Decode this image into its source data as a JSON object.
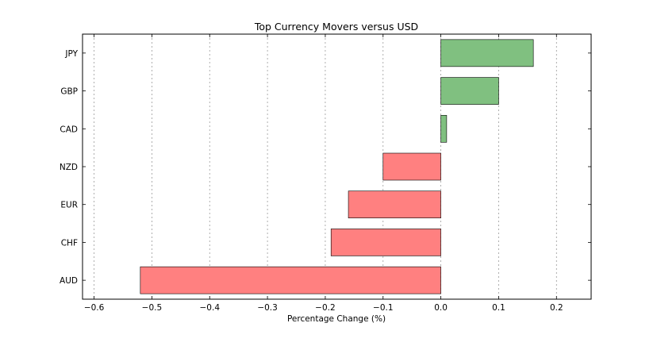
{
  "chart_data": {
    "type": "bar",
    "orientation": "horizontal",
    "title": "Top Currency Movers versus USD",
    "xlabel": "Percentage Change (%)",
    "ylabel": "",
    "xlim": [
      -0.62,
      0.26
    ],
    "xticks": [
      -0.6,
      -0.5,
      -0.4,
      -0.3,
      -0.2,
      -0.1,
      0.0,
      0.1,
      0.2
    ],
    "xtick_labels": [
      "−0.6",
      "−0.5",
      "−0.4",
      "−0.3",
      "−0.2",
      "−0.1",
      "0.0",
      "0.1",
      "0.2"
    ],
    "grid": "vertical dashed",
    "categories": [
      "JPY",
      "GBP",
      "CAD",
      "NZD",
      "EUR",
      "CHF",
      "AUD"
    ],
    "values": [
      0.16,
      0.1,
      0.01,
      -0.1,
      -0.16,
      -0.19,
      -0.52
    ],
    "colors": {
      "positive": "#80c080",
      "negative": "#ff8080",
      "edge": "#000000"
    }
  }
}
